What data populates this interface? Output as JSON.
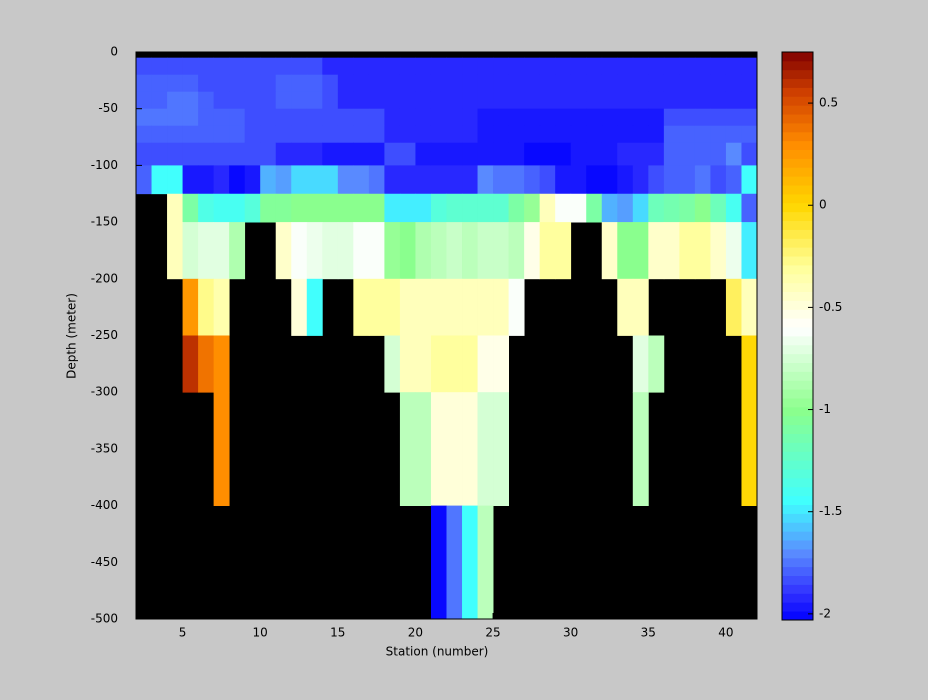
{
  "chart_data": {
    "type": "heatmap",
    "xlabel": "Station (number)",
    "ylabel": "Depth (meter)",
    "x_edges": [
      2,
      3,
      4,
      5,
      6,
      7,
      8,
      9,
      10,
      11,
      12,
      13,
      14,
      15,
      16,
      17,
      18,
      19,
      20,
      21,
      22,
      23,
      24,
      25,
      26,
      27,
      28,
      29,
      30,
      31,
      32,
      33,
      34,
      35,
      36,
      37,
      38,
      39,
      40,
      41,
      42
    ],
    "y_edges": [
      -5,
      -20,
      -35,
      -50,
      -65,
      -80,
      -100,
      -125,
      -150,
      -200,
      -250,
      -300,
      -400,
      -500
    ],
    "xlim": [
      2,
      42
    ],
    "ylim": [
      -500,
      0
    ],
    "xticks": [
      5,
      10,
      15,
      20,
      25,
      30,
      35,
      40
    ],
    "yticks": [
      0,
      -50,
      -100,
      -150,
      -200,
      -250,
      -300,
      -350,
      -400,
      -450,
      -500
    ],
    "clim": [
      -2.03,
      0.75
    ],
    "colorbar_ticks": [
      0.5,
      0,
      -0.5,
      -1,
      -1.5,
      -2
    ],
    "colormap_levels": 64,
    "colormap": [
      {
        "value": -2.03,
        "color": "#0000ff"
      },
      {
        "value": -1.9,
        "color": "#3030ff"
      },
      {
        "value": -1.7,
        "color": "#5a8cff"
      },
      {
        "value": -1.45,
        "color": "#40ffff"
      },
      {
        "value": -1.0,
        "color": "#8cff8c"
      },
      {
        "value": -0.6,
        "color": "#ffffff"
      },
      {
        "value": -0.3,
        "color": "#ffff99"
      },
      {
        "value": 0,
        "color": "#ffd700"
      },
      {
        "value": 0.3,
        "color": "#ff8c00"
      },
      {
        "value": 0.55,
        "color": "#d04000"
      },
      {
        "value": 0.75,
        "color": "#800000"
      }
    ],
    "nan_color": "#000000",
    "values": [
      [
        -1.85,
        -1.85,
        -1.85,
        -1.85,
        -1.85,
        -1.85,
        -1.85,
        -1.85,
        -1.85,
        -1.85,
        -1.85,
        -1.85,
        -1.9,
        -1.9,
        -1.9,
        -1.9,
        -1.9,
        -1.9,
        -1.9,
        -1.9,
        -1.9,
        -1.9,
        -1.9,
        -1.9,
        -1.9,
        -1.9,
        -1.9,
        -1.9,
        -1.9,
        -1.9,
        -1.9,
        -1.9,
        -1.9,
        -1.9,
        -1.9,
        -1.9,
        -1.9,
        -1.9,
        -1.9,
        -1.9
      ],
      [
        -1.8,
        -1.8,
        -1.78,
        -1.8,
        -1.82,
        -1.82,
        -1.85,
        -1.85,
        -1.85,
        -1.8,
        -1.78,
        -1.8,
        -1.85,
        -1.92,
        -1.92,
        -1.92,
        -1.92,
        -1.92,
        -1.92,
        -1.92,
        -1.92,
        -1.92,
        -1.92,
        -1.92,
        -1.92,
        -1.92,
        -1.92,
        -1.92,
        -1.92,
        -1.92,
        -1.92,
        -1.92,
        -1.92,
        -1.92,
        -1.92,
        -1.92,
        -1.92,
        -1.92,
        -1.92,
        -1.92
      ],
      [
        -1.8,
        -1.78,
        -1.75,
        -1.75,
        -1.8,
        -1.82,
        -1.85,
        -1.85,
        -1.85,
        -1.8,
        -1.8,
        -1.78,
        -1.82,
        -1.92,
        -1.92,
        -1.92,
        -1.92,
        -1.92,
        -1.92,
        -1.92,
        -1.92,
        -1.92,
        -1.92,
        -1.92,
        -1.92,
        -1.92,
        -1.92,
        -1.92,
        -1.92,
        -1.92,
        -1.92,
        -1.92,
        -1.92,
        -1.92,
        -1.92,
        -1.92,
        -1.92,
        -1.92,
        -1.92,
        -1.92
      ],
      [
        -1.75,
        -1.75,
        -1.75,
        -1.75,
        -1.78,
        -1.78,
        -1.78,
        -1.85,
        -1.85,
        -1.85,
        -1.85,
        -1.85,
        -1.85,
        -1.85,
        -1.85,
        -1.85,
        -1.9,
        -1.9,
        -1.9,
        -1.9,
        -1.9,
        -1.9,
        -1.95,
        -1.95,
        -1.95,
        -1.95,
        -1.95,
        -1.95,
        -1.95,
        -1.95,
        -1.95,
        -1.95,
        -1.95,
        -1.95,
        -1.82,
        -1.82,
        -1.82,
        -1.82,
        -1.82,
        -1.82
      ],
      [
        -1.78,
        -1.78,
        -1.78,
        -1.78,
        -1.78,
        -1.78,
        -1.78,
        -1.85,
        -1.85,
        -1.85,
        -1.85,
        -1.85,
        -1.85,
        -1.85,
        -1.85,
        -1.85,
        -1.92,
        -1.92,
        -1.92,
        -1.92,
        -1.92,
        -1.92,
        -1.95,
        -1.95,
        -1.95,
        -1.95,
        -1.95,
        -1.95,
        -1.95,
        -1.95,
        -1.95,
        -1.95,
        -1.95,
        -1.95,
        -1.8,
        -1.8,
        -1.8,
        -1.8,
        -1.8,
        -1.8
      ],
      [
        -1.82,
        -1.82,
        -1.82,
        -1.82,
        -1.85,
        -1.85,
        -1.85,
        -1.85,
        -1.85,
        -1.9,
        -1.9,
        -1.9,
        -1.95,
        -1.95,
        -1.95,
        -1.95,
        -1.85,
        -1.85,
        -1.95,
        -1.95,
        -1.95,
        -1.95,
        -1.95,
        -1.95,
        -1.95,
        -2.0,
        -2.0,
        -2.0,
        -1.95,
        -1.95,
        -1.95,
        -1.9,
        -1.9,
        -1.9,
        -1.78,
        -1.78,
        -1.78,
        -1.78,
        -1.72,
        -1.85
      ],
      [
        -1.8,
        -1.45,
        -1.45,
        -1.95,
        -1.95,
        -1.9,
        -2.0,
        -1.95,
        -1.6,
        -1.65,
        -1.55,
        -1.55,
        -1.55,
        -1.7,
        -1.7,
        -1.75,
        -1.9,
        -1.9,
        -1.9,
        -1.9,
        -1.9,
        -1.9,
        -1.7,
        -1.75,
        -1.75,
        -1.8,
        -1.85,
        -1.95,
        -1.95,
        -2.0,
        -2.0,
        -1.95,
        -1.9,
        -1.85,
        -1.8,
        -1.8,
        -1.75,
        -1.85,
        -1.8,
        -1.45
      ],
      [
        null,
        null,
        -0.4,
        -1.1,
        -1.35,
        -1.4,
        -1.4,
        -1.3,
        -1.05,
        -1.05,
        -1.0,
        -1.0,
        -1.0,
        -1.0,
        -1.0,
        -1.0,
        -1.5,
        -1.5,
        -1.5,
        -1.3,
        -1.25,
        -1.25,
        -1.25,
        -1.25,
        -1.1,
        -0.95,
        -0.4,
        -0.6,
        -0.6,
        -1.1,
        -1.6,
        -1.65,
        -1.55,
        -1.2,
        -1.15,
        -1.1,
        -1.0,
        -1.2,
        -1.4,
        -1.8
      ],
      [
        null,
        null,
        -0.4,
        -0.75,
        -0.7,
        -0.7,
        -0.9,
        null,
        null,
        -0.45,
        -0.6,
        -0.65,
        -0.7,
        -0.7,
        -0.6,
        -0.6,
        -0.95,
        -1.0,
        -0.9,
        -0.85,
        -0.8,
        -0.85,
        -0.8,
        -0.8,
        -0.85,
        -0.55,
        -0.3,
        -0.3,
        null,
        null,
        -0.45,
        -1.0,
        -1.0,
        -0.45,
        -0.45,
        -0.3,
        -0.3,
        -0.45,
        -0.65,
        -1.5
      ],
      [
        null,
        null,
        null,
        0.25,
        -0.25,
        -0.35,
        null,
        null,
        null,
        null,
        -0.5,
        -1.45,
        null,
        null,
        -0.3,
        -0.3,
        -0.3,
        -0.4,
        -0.4,
        -0.4,
        -0.4,
        -0.4,
        -0.4,
        -0.4,
        -0.6,
        null,
        null,
        null,
        null,
        null,
        null,
        -0.4,
        -0.4,
        null,
        null,
        null,
        null,
        null,
        -0.2,
        -0.4
      ],
      [
        null,
        null,
        null,
        0.6,
        0.4,
        0.3,
        null,
        null,
        null,
        null,
        null,
        null,
        null,
        null,
        null,
        null,
        -0.75,
        -0.4,
        -0.4,
        -0.3,
        -0.3,
        -0.3,
        -0.55,
        -0.55,
        null,
        null,
        null,
        null,
        null,
        null,
        null,
        null,
        -0.7,
        -0.85,
        null,
        null,
        null,
        null,
        null,
        0.0
      ],
      [
        null,
        null,
        null,
        null,
        null,
        0.3,
        null,
        null,
        null,
        null,
        null,
        null,
        null,
        null,
        null,
        null,
        null,
        -0.85,
        -0.85,
        -0.5,
        -0.5,
        -0.5,
        -0.75,
        -0.75,
        null,
        null,
        null,
        null,
        null,
        null,
        null,
        null,
        -0.85,
        null,
        null,
        null,
        null,
        null,
        null,
        0.0
      ],
      [
        null,
        null,
        null,
        null,
        null,
        null,
        null,
        null,
        null,
        null,
        null,
        null,
        null,
        null,
        null,
        null,
        null,
        null,
        null,
        -2.0,
        -1.75,
        -1.45,
        -0.85,
        null,
        null,
        null,
        null,
        null,
        null,
        null,
        null,
        null,
        null,
        null,
        null,
        null,
        null,
        null,
        null,
        null
      ]
    ]
  }
}
